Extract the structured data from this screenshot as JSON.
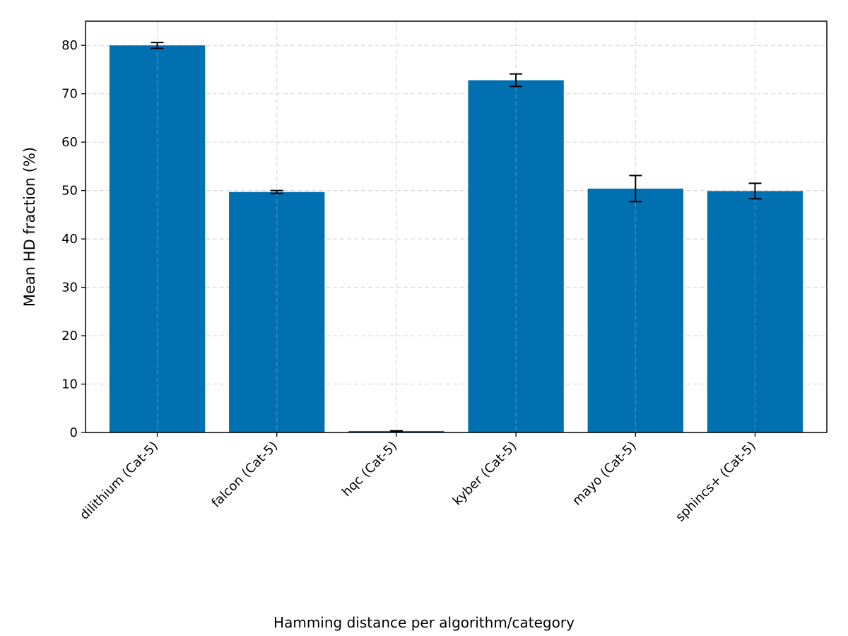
{
  "chart_data": {
    "type": "bar",
    "xlabel": "Hamming distance per algorithm/category",
    "ylabel": "Mean HD fraction (%)",
    "ylim": [
      0,
      85
    ],
    "yticks": [
      0,
      10,
      20,
      30,
      40,
      50,
      60,
      70,
      80
    ],
    "grid": true,
    "bar_color": "#0070b0",
    "categories": [
      "dilithium (Cat-5)",
      "falcon (Cat-5)",
      "hqc (Cat-5)",
      "kyber (Cat-5)",
      "mayo (Cat-5)",
      "sphincs+ (Cat-5)"
    ],
    "values": [
      80.0,
      49.7,
      0.3,
      72.8,
      50.4,
      49.9
    ],
    "errors": [
      0.6,
      0.3,
      0.05,
      1.3,
      2.7,
      1.6
    ]
  }
}
